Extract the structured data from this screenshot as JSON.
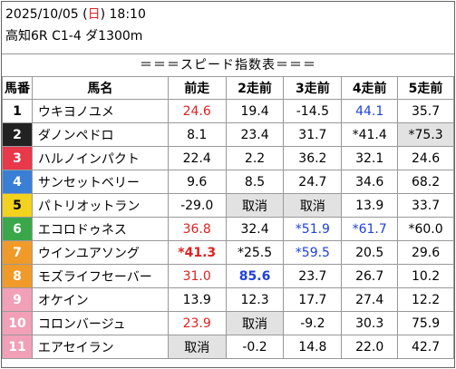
{
  "header": {
    "date_prefix": "2025/10/05 (",
    "weekday": "日",
    "date_suffix": ") 18:10",
    "race_info": "高知6R C1-4 ダ1300m"
  },
  "banner": "＝＝＝スピード指数表＝＝＝",
  "columns": [
    "馬番",
    "馬名",
    "前走",
    "2走前",
    "3走前",
    "4走前",
    "5走前"
  ],
  "colors": {
    "sun": "#e02020",
    "red_value": "#e02020",
    "blue_value": "#2040e0",
    "gray_cell": "#e2e2e2"
  },
  "rows": [
    {
      "num": "1",
      "name": "ウキヨノユメ",
      "cells": [
        {
          "t": "24.6",
          "s": "red"
        },
        {
          "t": "19.4",
          "s": ""
        },
        {
          "t": "-14.5",
          "s": ""
        },
        {
          "t": "44.1",
          "s": "blue"
        },
        {
          "t": "35.7",
          "s": ""
        }
      ]
    },
    {
      "num": "2",
      "name": "ダノンペドロ",
      "cells": [
        {
          "t": "8.1",
          "s": ""
        },
        {
          "t": "23.4",
          "s": ""
        },
        {
          "t": "31.7",
          "s": ""
        },
        {
          "t": "*41.4",
          "s": ""
        },
        {
          "t": "*75.3",
          "s": "gray"
        }
      ]
    },
    {
      "num": "3",
      "name": "ハルノインパクト",
      "cells": [
        {
          "t": "22.4",
          "s": ""
        },
        {
          "t": "2.2",
          "s": ""
        },
        {
          "t": "36.2",
          "s": ""
        },
        {
          "t": "32.1",
          "s": ""
        },
        {
          "t": "24.6",
          "s": ""
        }
      ]
    },
    {
      "num": "4",
      "name": "サンセットベリー",
      "cells": [
        {
          "t": "9.6",
          "s": ""
        },
        {
          "t": "8.5",
          "s": ""
        },
        {
          "t": "24.7",
          "s": ""
        },
        {
          "t": "34.6",
          "s": ""
        },
        {
          "t": "68.2",
          "s": ""
        }
      ]
    },
    {
      "num": "5",
      "name": "パトリオットラン",
      "cells": [
        {
          "t": "-29.0",
          "s": ""
        },
        {
          "t": "取消",
          "s": "gray"
        },
        {
          "t": "取消",
          "s": "gray"
        },
        {
          "t": "13.9",
          "s": ""
        },
        {
          "t": "33.7",
          "s": ""
        }
      ]
    },
    {
      "num": "6",
      "name": "エコロドゥネス",
      "cells": [
        {
          "t": "36.8",
          "s": "red"
        },
        {
          "t": "32.4",
          "s": ""
        },
        {
          "t": "*51.9",
          "s": "blue"
        },
        {
          "t": "*61.7",
          "s": "blue"
        },
        {
          "t": "*60.0",
          "s": ""
        }
      ]
    },
    {
      "num": "7",
      "name": "ウインユアソング",
      "cells": [
        {
          "t": "*41.3",
          "s": "boldred"
        },
        {
          "t": "*25.5",
          "s": ""
        },
        {
          "t": "*59.5",
          "s": "blue"
        },
        {
          "t": "20.5",
          "s": ""
        },
        {
          "t": "29.6",
          "s": ""
        }
      ]
    },
    {
      "num": "8",
      "name": "モズライフセーバー",
      "cells": [
        {
          "t": "31.0",
          "s": "red"
        },
        {
          "t": "85.6",
          "s": "boldblue"
        },
        {
          "t": "23.7",
          "s": ""
        },
        {
          "t": "26.7",
          "s": ""
        },
        {
          "t": "10.2",
          "s": ""
        }
      ]
    },
    {
      "num": "9",
      "name": "オケイン",
      "cells": [
        {
          "t": "13.9",
          "s": ""
        },
        {
          "t": "12.3",
          "s": ""
        },
        {
          "t": "17.7",
          "s": ""
        },
        {
          "t": "27.4",
          "s": ""
        },
        {
          "t": "12.2",
          "s": ""
        }
      ]
    },
    {
      "num": "10",
      "name": "コロンバージュ",
      "cells": [
        {
          "t": "23.9",
          "s": "red"
        },
        {
          "t": "取消",
          "s": "gray"
        },
        {
          "t": "-9.2",
          "s": ""
        },
        {
          "t": "30.3",
          "s": ""
        },
        {
          "t": "75.9",
          "s": ""
        }
      ]
    },
    {
      "num": "11",
      "name": "エアセイラン",
      "cells": [
        {
          "t": "取消",
          "s": "gray"
        },
        {
          "t": "-0.2",
          "s": ""
        },
        {
          "t": "14.8",
          "s": ""
        },
        {
          "t": "22.0",
          "s": ""
        },
        {
          "t": "42.7",
          "s": ""
        }
      ]
    }
  ]
}
